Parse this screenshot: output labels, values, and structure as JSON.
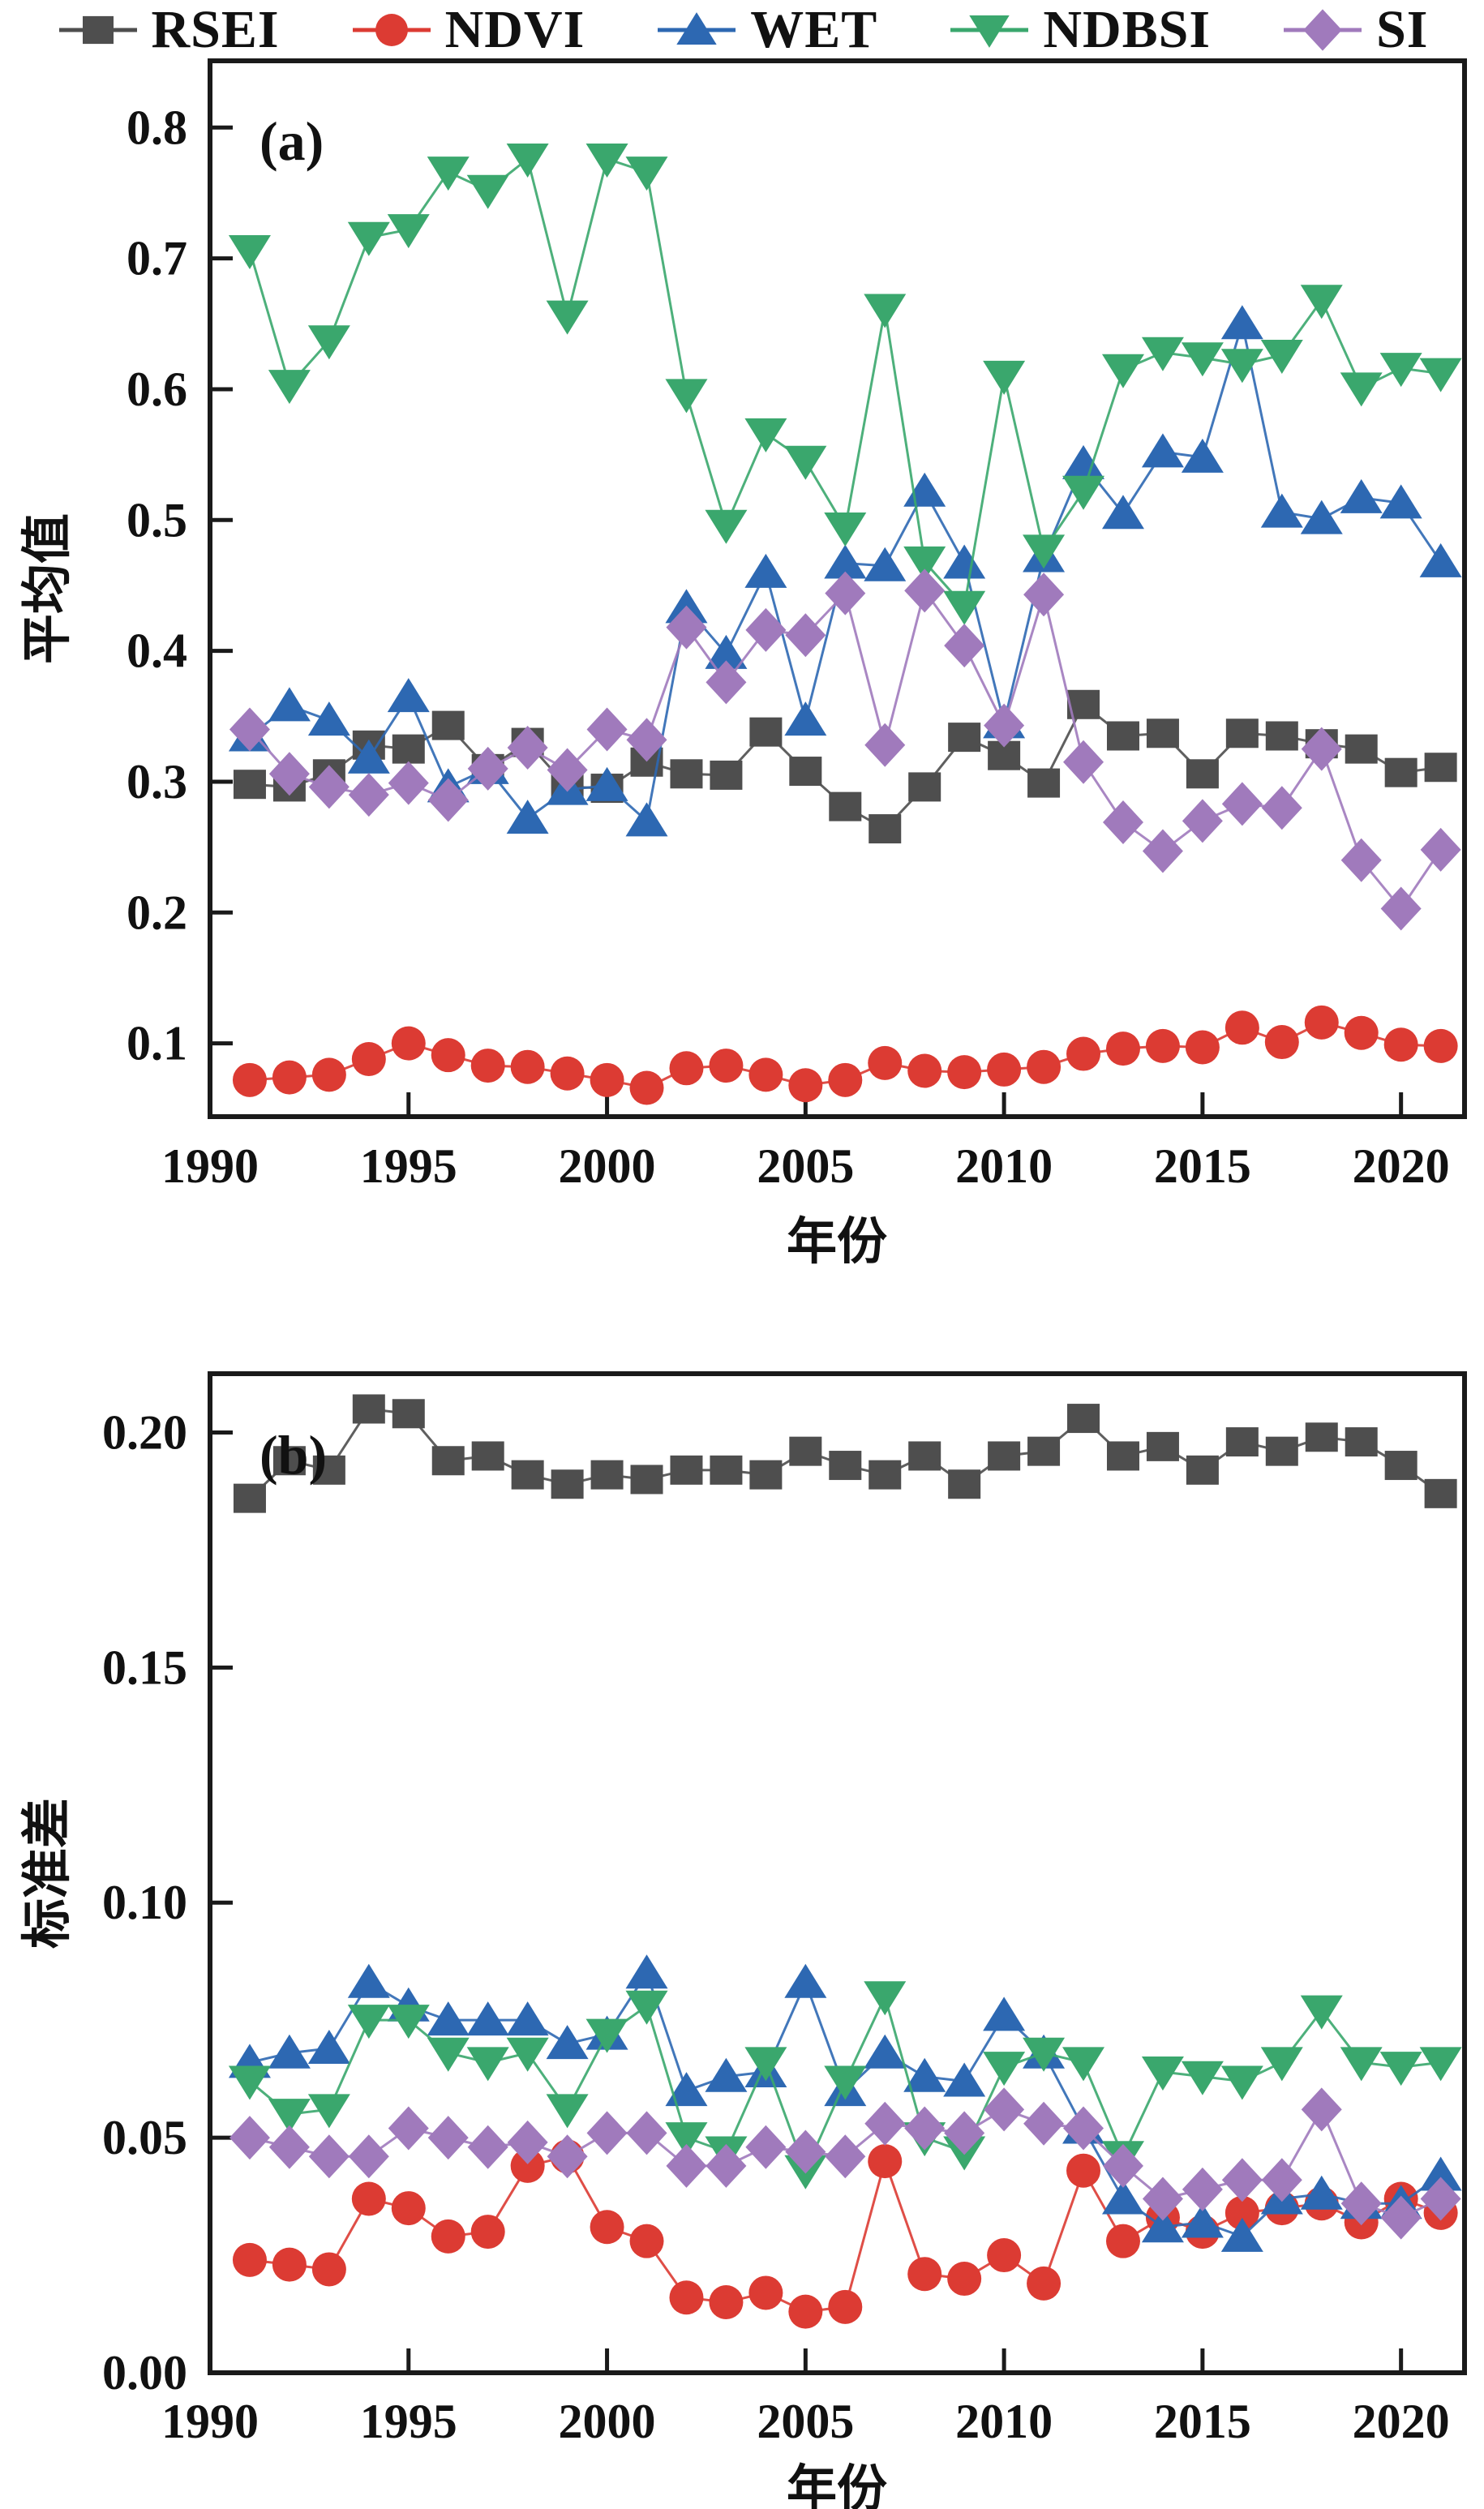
{
  "figure": {
    "background": "#ffffff",
    "axis_color": "#1a1a1a",
    "legend": {
      "items": [
        {
          "label": "RSEI",
          "marker": "square",
          "color": "#4e4e4e"
        },
        {
          "label": "NDVI",
          "marker": "circle",
          "color": "#dc3b33"
        },
        {
          "label": "WET",
          "marker": "triangle-up",
          "color": "#2d68b2"
        },
        {
          "label": "NDBSI",
          "marker": "triangle-down",
          "color": "#3aa76d"
        },
        {
          "label": "SI",
          "marker": "diamond",
          "color": "#a07abc"
        }
      ]
    }
  },
  "chart_data": [
    {
      "type": "line",
      "title": "(a)",
      "xlabel": "年份",
      "ylabel": "平均值",
      "grid": false,
      "legend_position": "top",
      "x": [
        1991,
        1992,
        1993,
        1994,
        1995,
        1996,
        1997,
        1998,
        1999,
        2000,
        2001,
        2002,
        2003,
        2004,
        2005,
        2006,
        2007,
        2008,
        2009,
        2010,
        2011,
        2012,
        2013,
        2014,
        2015,
        2016,
        2017,
        2018,
        2019,
        2020,
        2021
      ],
      "xlim": [
        1990,
        2021.6
      ],
      "ylim": [
        0.044,
        0.851
      ],
      "x_ticks": [
        {
          "v": 1990,
          "label": "1990"
        },
        {
          "v": 1995,
          "label": "1995"
        },
        {
          "v": 2000,
          "label": "2000"
        },
        {
          "v": 2005,
          "label": "2005"
        },
        {
          "v": 2010,
          "label": "2010"
        },
        {
          "v": 2015,
          "label": "2015"
        },
        {
          "v": 2020,
          "label": "2020"
        }
      ],
      "y_ticks": [
        {
          "v": 0.1,
          "label": "0.1"
        },
        {
          "v": 0.2,
          "label": "0.2"
        },
        {
          "v": 0.3,
          "label": "0.3"
        },
        {
          "v": 0.4,
          "label": "0.4"
        },
        {
          "v": 0.5,
          "label": "0.5"
        },
        {
          "v": 0.6,
          "label": "0.6"
        },
        {
          "v": 0.7,
          "label": "0.7"
        },
        {
          "v": 0.8,
          "label": "0.8"
        }
      ],
      "series": [
        {
          "name": "RSEI",
          "color": "#4e4e4e",
          "marker": "square",
          "values": [
            0.298,
            0.296,
            0.306,
            0.328,
            0.325,
            0.343,
            0.31,
            0.33,
            0.296,
            0.295,
            0.315,
            0.306,
            0.305,
            0.338,
            0.308,
            0.281,
            0.264,
            0.296,
            0.334,
            0.32,
            0.299,
            0.359,
            0.335,
            0.337,
            0.306,
            0.337,
            0.335,
            0.329,
            0.325,
            0.307,
            0.311
          ]
        },
        {
          "name": "NDVI",
          "color": "#dc3b33",
          "marker": "circle",
          "values": [
            0.072,
            0.074,
            0.076,
            0.088,
            0.1,
            0.091,
            0.083,
            0.082,
            0.077,
            0.072,
            0.066,
            0.081,
            0.083,
            0.076,
            0.068,
            0.072,
            0.085,
            0.079,
            0.078,
            0.08,
            0.082,
            0.092,
            0.096,
            0.098,
            0.097,
            0.112,
            0.101,
            0.116,
            0.108,
            0.099,
            0.098
          ]
        },
        {
          "name": "WET",
          "color": "#2d68b2",
          "marker": "triangle-up",
          "values": [
            0.335,
            0.358,
            0.347,
            0.318,
            0.365,
            0.296,
            0.31,
            0.272,
            0.294,
            0.297,
            0.27,
            0.433,
            0.398,
            0.46,
            0.347,
            0.467,
            0.465,
            0.522,
            0.467,
            0.345,
            0.472,
            0.543,
            0.505,
            0.552,
            0.548,
            0.65,
            0.506,
            0.501,
            0.517,
            0.513,
            0.468
          ]
        },
        {
          "name": "NDBSI",
          "color": "#3aa76d",
          "marker": "triangle-down",
          "values": [
            0.706,
            0.603,
            0.637,
            0.716,
            0.722,
            0.766,
            0.752,
            0.776,
            0.656,
            0.776,
            0.766,
            0.596,
            0.496,
            0.566,
            0.545,
            0.494,
            0.661,
            0.468,
            0.434,
            0.61,
            0.477,
            0.522,
            0.615,
            0.628,
            0.624,
            0.619,
            0.626,
            0.668,
            0.601,
            0.616,
            0.612
          ]
        },
        {
          "name": "SI",
          "color": "#a07abc",
          "marker": "diamond",
          "values": [
            0.34,
            0.306,
            0.296,
            0.29,
            0.299,
            0.286,
            0.31,
            0.326,
            0.309,
            0.34,
            0.332,
            0.418,
            0.376,
            0.416,
            0.412,
            0.444,
            0.328,
            0.446,
            0.404,
            0.343,
            0.443,
            0.315,
            0.269,
            0.247,
            0.27,
            0.283,
            0.28,
            0.325,
            0.24,
            0.203,
            0.248
          ]
        }
      ]
    },
    {
      "type": "line",
      "title": "(b)",
      "xlabel": "年份",
      "ylabel": "标准差",
      "grid": false,
      "legend_position": "top",
      "x": [
        1991,
        1992,
        1993,
        1994,
        1995,
        1996,
        1997,
        1998,
        1999,
        2000,
        2001,
        2002,
        2003,
        2004,
        2005,
        2006,
        2007,
        2008,
        2009,
        2010,
        2011,
        2012,
        2013,
        2014,
        2015,
        2016,
        2017,
        2018,
        2019,
        2020,
        2021
      ],
      "xlim": [
        1990,
        2021.6
      ],
      "ylim": [
        0.0,
        0.2125
      ],
      "x_ticks": [
        {
          "v": 1990,
          "label": "1990"
        },
        {
          "v": 1995,
          "label": "1995"
        },
        {
          "v": 2000,
          "label": "2000"
        },
        {
          "v": 2005,
          "label": "2005"
        },
        {
          "v": 2010,
          "label": "2010"
        },
        {
          "v": 2015,
          "label": "2015"
        },
        {
          "v": 2020,
          "label": "2020"
        }
      ],
      "y_ticks": [
        {
          "v": 0.0,
          "label": "0.00"
        },
        {
          "v": 0.05,
          "label": "0.05"
        },
        {
          "v": 0.1,
          "label": "0.10"
        },
        {
          "v": 0.15,
          "label": "0.15"
        },
        {
          "v": 0.2,
          "label": "0.20"
        }
      ],
      "series": [
        {
          "name": "RSEI",
          "color": "#4e4e4e",
          "marker": "square",
          "values": [
            0.186,
            0.194,
            0.192,
            0.205,
            0.204,
            0.194,
            0.195,
            0.191,
            0.189,
            0.191,
            0.19,
            0.192,
            0.192,
            0.191,
            0.196,
            0.193,
            0.191,
            0.195,
            0.189,
            0.195,
            0.196,
            0.203,
            0.195,
            0.197,
            0.192,
            0.198,
            0.196,
            0.199,
            0.198,
            0.193,
            0.187
          ]
        },
        {
          "name": "NDVI",
          "color": "#dc3b33",
          "marker": "circle",
          "values": [
            0.024,
            0.023,
            0.022,
            0.037,
            0.035,
            0.029,
            0.03,
            0.044,
            0.046,
            0.031,
            0.028,
            0.016,
            0.015,
            0.017,
            0.013,
            0.014,
            0.045,
            0.021,
            0.02,
            0.025,
            0.019,
            0.043,
            0.028,
            0.033,
            0.03,
            0.034,
            0.035,
            0.036,
            0.032,
            0.037,
            0.034
          ]
        },
        {
          "name": "WET",
          "color": "#2d68b2",
          "marker": "triangle-up",
          "values": [
            0.066,
            0.068,
            0.069,
            0.083,
            0.078,
            0.075,
            0.075,
            0.075,
            0.07,
            0.072,
            0.085,
            0.06,
            0.063,
            0.064,
            0.083,
            0.06,
            0.068,
            0.063,
            0.062,
            0.076,
            0.068,
            0.052,
            0.037,
            0.031,
            0.032,
            0.029,
            0.037,
            0.038,
            0.036,
            0.036,
            0.042
          ]
        },
        {
          "name": "NDBSI",
          "color": "#3aa76d",
          "marker": "triangle-down",
          "values": [
            0.062,
            0.055,
            0.056,
            0.075,
            0.075,
            0.068,
            0.066,
            0.068,
            0.056,
            0.072,
            0.078,
            0.05,
            0.047,
            0.066,
            0.043,
            0.062,
            0.08,
            0.05,
            0.047,
            0.065,
            0.068,
            0.066,
            0.046,
            0.064,
            0.063,
            0.062,
            0.066,
            0.077,
            0.066,
            0.065,
            0.066
          ]
        },
        {
          "name": "SI",
          "color": "#a07abc",
          "marker": "diamond",
          "values": [
            0.05,
            0.048,
            0.046,
            0.046,
            0.052,
            0.05,
            0.048,
            0.049,
            0.046,
            0.051,
            0.051,
            0.044,
            0.044,
            0.048,
            0.047,
            0.046,
            0.053,
            0.052,
            0.051,
            0.056,
            0.053,
            0.052,
            0.044,
            0.037,
            0.039,
            0.041,
            0.041,
            0.056,
            0.036,
            0.033,
            0.037
          ]
        }
      ]
    }
  ]
}
